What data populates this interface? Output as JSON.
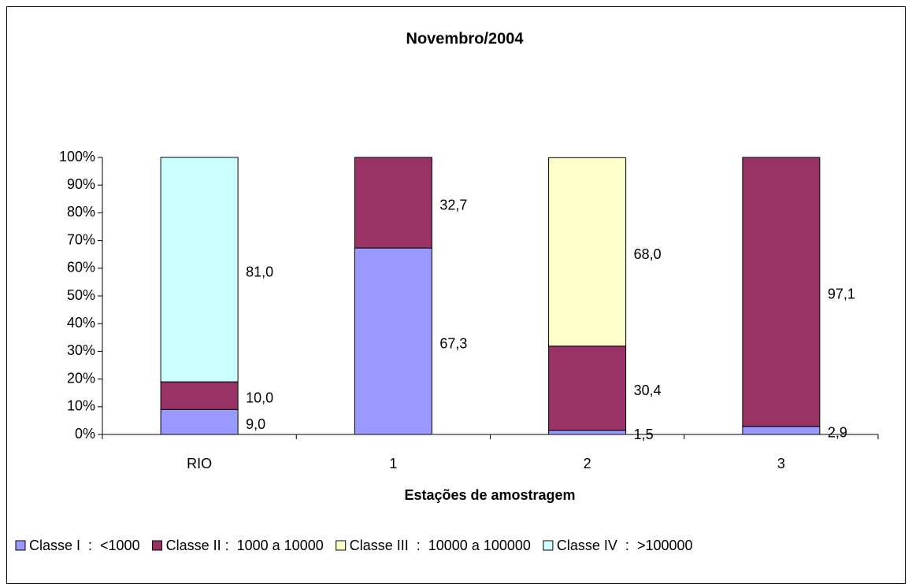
{
  "chart_data": {
    "type": "stacked-bar-100",
    "title": "Novembro/2004",
    "x_label": "Estações de amostragem",
    "categories": [
      "RIO",
      "1",
      "2",
      "3"
    ],
    "series": [
      {
        "name": "Classe I  :  <1000",
        "color": "#9999ff",
        "values": [
          9.0,
          67.3,
          1.5,
          2.9
        ],
        "value_labels": [
          "9,0",
          "67,3",
          "1,5",
          "2,9"
        ]
      },
      {
        "name": "Classe II :  1000 a 10000",
        "color": "#993366",
        "values": [
          10.0,
          32.7,
          30.4,
          97.1
        ],
        "value_labels": [
          "10,0",
          "32,7",
          "30,4",
          "97,1"
        ]
      },
      {
        "name": "Classe III  :  10000 a 100000",
        "color": "#ffffcc",
        "values": [
          null,
          null,
          68.0,
          null
        ],
        "value_labels": [
          null,
          null,
          "68,0",
          null
        ]
      },
      {
        "name": "Classe IV  :  >100000",
        "color": "#ccffff",
        "values": [
          81.0,
          null,
          null,
          null
        ],
        "value_labels": [
          "81,0",
          null,
          null,
          null
        ]
      }
    ],
    "ylim": [
      0,
      100
    ],
    "yticks": [
      {
        "value": 0,
        "label": "0%"
      },
      {
        "value": 10,
        "label": "10%"
      },
      {
        "value": 20,
        "label": "20%"
      },
      {
        "value": 30,
        "label": "30%"
      },
      {
        "value": 40,
        "label": "40%"
      },
      {
        "value": 50,
        "label": "50%"
      },
      {
        "value": 60,
        "label": "60%"
      },
      {
        "value": 70,
        "label": "70%"
      },
      {
        "value": 80,
        "label": "80%"
      },
      {
        "value": 90,
        "label": "90%"
      },
      {
        "value": 100,
        "label": "100%"
      }
    ],
    "legend": "bottom"
  }
}
